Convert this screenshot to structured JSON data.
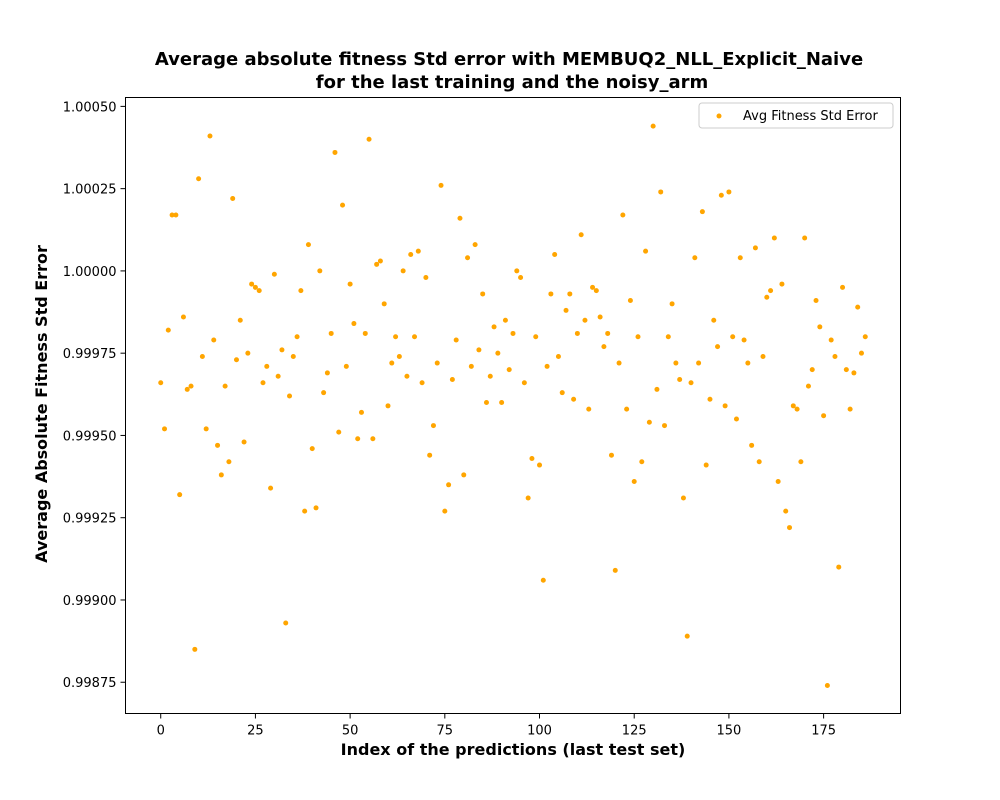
{
  "chart_data": {
    "type": "scatter",
    "title_line1": "Average absolute fitness Std error with MEMBUQ2_NLL_Explicit_Naive",
    "title_line2": "for the last training and the noisy_arm",
    "xlabel": "Index of the predictions (last test set)",
    "ylabel": "Average Absolute Fitness Std Error",
    "xlim": [
      -9.3,
      195.3
    ],
    "ylim": [
      0.998655,
      1.000527
    ],
    "xticks": [
      "0",
      "25",
      "50",
      "75",
      "100",
      "125",
      "150",
      "175"
    ],
    "xtick_values": [
      0,
      25,
      50,
      75,
      100,
      125,
      150,
      175
    ],
    "yticks": [
      "0.99875",
      "0.99900",
      "0.99925",
      "0.99950",
      "0.99975",
      "1.00000",
      "1.00025",
      "1.00050"
    ],
    "ytick_values": [
      0.99875,
      0.999,
      0.99925,
      0.9995,
      0.99975,
      1.0,
      1.00025,
      1.0005
    ],
    "legend": {
      "label": "Avg Fitness Std Error",
      "position": "upper right"
    },
    "grid": false,
    "color": "#ffa500",
    "series": [
      {
        "name": "Avg Fitness Std Error",
        "x": [
          0,
          1,
          2,
          3,
          4,
          5,
          6,
          7,
          8,
          9,
          10,
          11,
          12,
          13,
          14,
          15,
          16,
          17,
          18,
          19,
          20,
          21,
          22,
          23,
          24,
          25,
          26,
          27,
          28,
          29,
          30,
          31,
          32,
          33,
          34,
          35,
          36,
          37,
          38,
          39,
          40,
          41,
          42,
          43,
          44,
          45,
          46,
          47,
          48,
          49,
          50,
          51,
          52,
          53,
          54,
          55,
          56,
          57,
          58,
          59,
          60,
          61,
          62,
          63,
          64,
          65,
          66,
          67,
          68,
          69,
          70,
          71,
          72,
          73,
          74,
          75,
          76,
          77,
          78,
          79,
          80,
          81,
          82,
          83,
          84,
          85,
          86,
          87,
          88,
          89,
          90,
          91,
          92,
          93,
          94,
          95,
          96,
          97,
          98,
          99,
          100,
          101,
          102,
          103,
          104,
          105,
          106,
          107,
          108,
          109,
          110,
          111,
          112,
          113,
          114,
          115,
          116,
          117,
          118,
          119,
          120,
          121,
          122,
          123,
          124,
          125,
          126,
          127,
          128,
          129,
          130,
          131,
          132,
          133,
          134,
          135,
          136,
          137,
          138,
          139,
          140,
          141,
          142,
          143,
          144,
          145,
          146,
          147,
          148,
          149,
          150,
          151,
          152,
          153,
          154,
          155,
          156,
          157,
          158,
          159,
          160,
          161,
          162,
          163,
          164,
          165,
          166,
          167,
          168,
          169,
          170,
          171,
          172,
          173,
          174,
          175,
          176,
          177,
          178,
          179,
          180,
          181,
          182,
          183,
          184,
          185,
          186
        ],
        "y": [
          0.99966,
          0.99952,
          0.99982,
          1.00017,
          1.00017,
          0.99932,
          0.99986,
          0.99964,
          0.99965,
          0.99885,
          1.00028,
          0.99974,
          0.99952,
          1.00041,
          0.99979,
          0.99947,
          0.99938,
          0.99965,
          0.99942,
          1.00022,
          0.99973,
          0.99985,
          0.99948,
          0.99975,
          0.99996,
          0.99995,
          0.99994,
          0.99966,
          0.99971,
          0.99934,
          0.99999,
          0.99968,
          0.99976,
          0.99893,
          0.99962,
          0.99974,
          0.9998,
          0.99994,
          0.99927,
          1.00008,
          0.99946,
          0.99928,
          1.0,
          0.99963,
          0.99969,
          0.99981,
          1.00036,
          0.99951,
          1.0002,
          0.99971,
          0.99996,
          0.99984,
          0.99949,
          0.99957,
          0.99981,
          1.0004,
          0.99949,
          1.00002,
          1.00003,
          0.9999,
          0.99959,
          0.99972,
          0.9998,
          0.99974,
          1.0,
          0.99968,
          1.00005,
          0.9998,
          1.00006,
          0.99966,
          0.99998,
          0.99944,
          0.99953,
          0.99972,
          1.00026,
          0.99927,
          0.99935,
          0.99967,
          0.99979,
          1.00016,
          0.99938,
          1.00004,
          0.99971,
          1.00008,
          0.99976,
          0.99993,
          0.9996,
          0.99968,
          0.99983,
          0.99975,
          0.9996,
          0.99985,
          0.9997,
          0.99981,
          1.0,
          0.99998,
          0.99966,
          0.99931,
          0.99943,
          0.9998,
          0.99941,
          0.99906,
          0.99971,
          0.99993,
          1.00005,
          0.99974,
          0.99963,
          0.99988,
          0.99993,
          0.99961,
          0.99981,
          1.00011,
          0.99985,
          0.99958,
          0.99995,
          0.99994,
          0.99986,
          0.99977,
          0.99981,
          0.99944,
          0.99909,
          0.99972,
          1.00017,
          0.99958,
          0.99991,
          0.99936,
          0.9998,
          0.99942,
          1.00006,
          0.99954,
          1.00044,
          0.99964,
          1.00024,
          0.99953,
          0.9998,
          0.9999,
          0.99972,
          0.99967,
          0.99931,
          0.99889,
          0.99966,
          1.00004,
          0.99972,
          1.00018,
          0.99941,
          0.99961,
          0.99985,
          0.99977,
          1.00023,
          0.99959,
          1.00024,
          0.9998,
          0.99955,
          1.00004,
          0.99979,
          0.99972,
          0.99947,
          1.00007,
          0.99942,
          0.99974,
          0.99992,
          0.99994,
          1.0001,
          0.99936,
          0.99996,
          0.99927,
          0.99922,
          0.99959,
          0.99958,
          0.99942,
          1.0001,
          0.99965,
          0.9997,
          0.99991,
          0.99983,
          0.99956,
          0.99874,
          0.99979,
          0.99974,
          0.9991,
          0.99995,
          0.9997,
          0.99958,
          0.99969,
          0.99989,
          0.99975,
          0.9998
        ]
      }
    ]
  }
}
